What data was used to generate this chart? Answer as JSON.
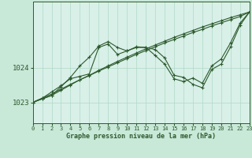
{
  "xlabel": "Graphe pression niveau de la mer (hPa)",
  "background_color": "#c8e8d8",
  "plot_bg_color": "#d8f0e8",
  "line_color": "#2d5a2d",
  "grid_color": "#b0d8c8",
  "x_ticks": [
    0,
    1,
    2,
    3,
    4,
    5,
    6,
    7,
    8,
    9,
    10,
    11,
    12,
    13,
    14,
    15,
    16,
    17,
    18,
    19,
    20,
    21,
    22,
    23
  ],
  "y_ticks": [
    1023,
    1024
  ],
  "ylim": [
    1022.4,
    1025.9
  ],
  "xlim": [
    0,
    23
  ],
  "series": [
    [
      1023.0,
      1023.1,
      1023.2,
      1023.35,
      1023.5,
      1023.65,
      1023.78,
      1023.92,
      1024.05,
      1024.18,
      1024.3,
      1024.42,
      1024.54,
      1024.65,
      1024.76,
      1024.87,
      1024.97,
      1025.07,
      1025.17,
      1025.26,
      1025.35,
      1025.44,
      1025.52,
      1025.6
    ],
    [
      1023.0,
      1023.12,
      1023.24,
      1023.38,
      1023.52,
      1023.65,
      1023.77,
      1023.9,
      1024.02,
      1024.14,
      1024.26,
      1024.38,
      1024.49,
      1024.6,
      1024.71,
      1024.81,
      1024.91,
      1025.01,
      1025.1,
      1025.2,
      1025.29,
      1025.38,
      1025.47,
      1025.6
    ],
    [
      1023.0,
      1023.1,
      1023.2,
      1023.45,
      1023.72,
      1024.05,
      1024.3,
      1024.62,
      1024.75,
      1024.58,
      1024.48,
      1024.6,
      1024.58,
      1024.35,
      1024.1,
      1023.68,
      1023.6,
      1023.7,
      1023.55,
      1024.05,
      1024.25,
      1024.72,
      1025.28,
      1025.6
    ],
    [
      1023.0,
      1023.12,
      1023.3,
      1023.48,
      1023.68,
      1023.75,
      1023.82,
      1024.58,
      1024.68,
      1024.38,
      1024.48,
      1024.58,
      1024.58,
      1024.52,
      1024.28,
      1023.78,
      1023.72,
      1023.52,
      1023.42,
      1023.95,
      1024.1,
      1024.6,
      1025.22,
      1025.6
    ]
  ]
}
